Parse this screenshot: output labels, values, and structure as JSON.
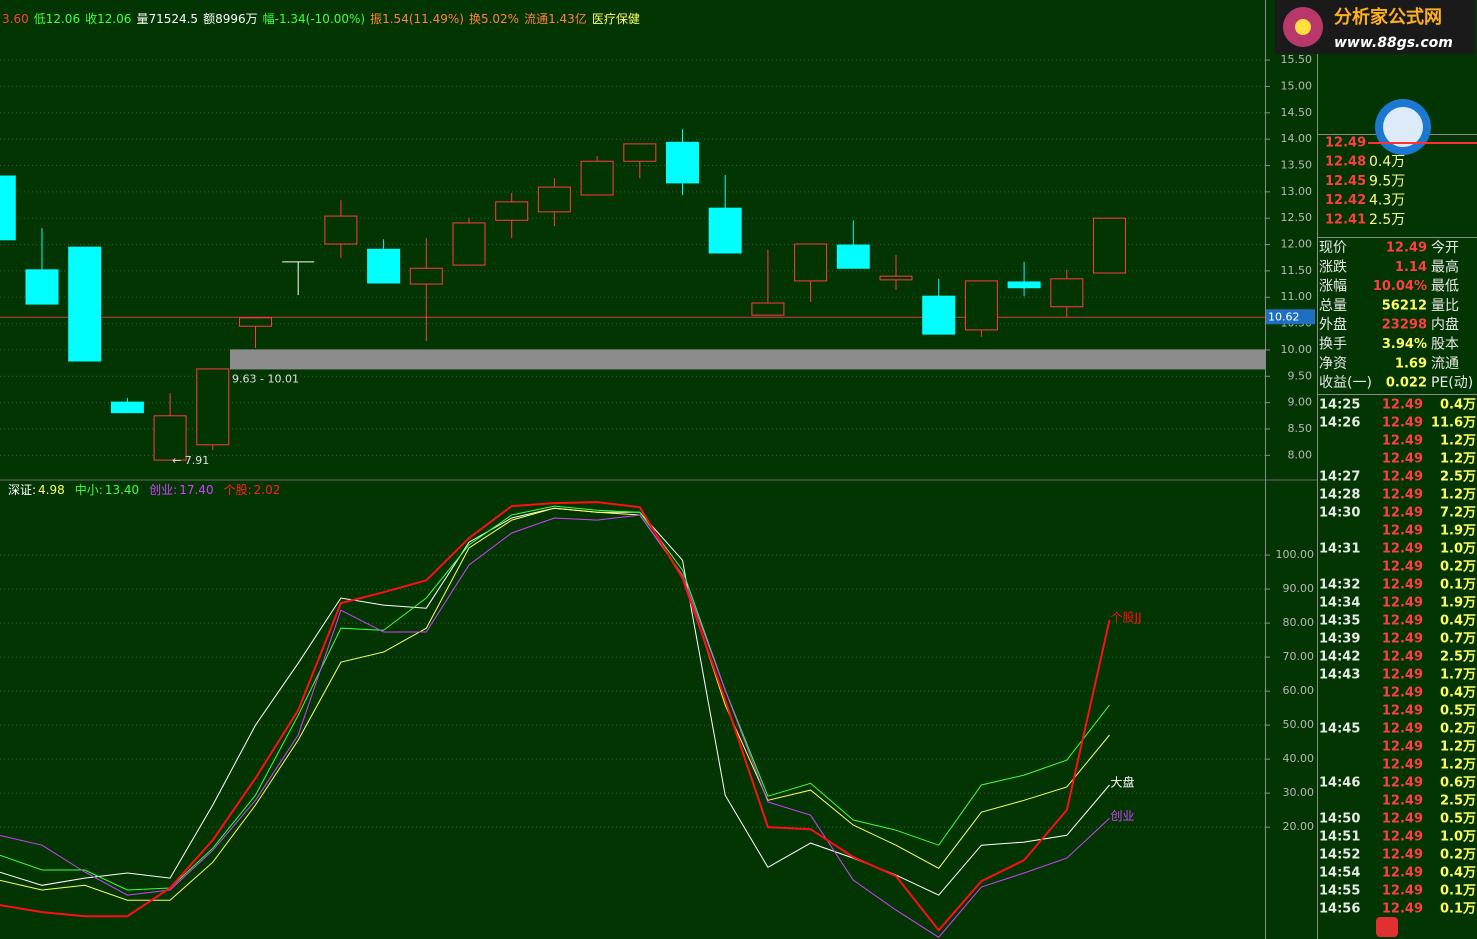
{
  "info_bar": [
    {
      "text": "3.60",
      "color": "#ff4040"
    },
    {
      "text": "低12.06",
      "color": "#40ff40"
    },
    {
      "text": "收12.06",
      "color": "#40ff40"
    },
    {
      "text": "量71524.5",
      "color": "#ffffff"
    },
    {
      "text": "额8996万",
      "color": "#ffffff"
    },
    {
      "text": "幅-1.34(-10.00%)",
      "color": "#40ff40"
    },
    {
      "text": "振1.54(11.49%)",
      "color": "#ff8040"
    },
    {
      "text": "换5.02%",
      "color": "#ff8040"
    },
    {
      "text": "流通1.43亿",
      "color": "#ff8040"
    },
    {
      "text": "医疗保健",
      "color": "#ffff60"
    }
  ],
  "price_panel": {
    "ylim": [
      7.57,
      16.64
    ],
    "yticks": [
      {
        "value": 8,
        "label": "8.00"
      },
      {
        "value": 8.5,
        "label": "8.50"
      },
      {
        "value": 9,
        "label": "9.00"
      },
      {
        "value": 9.5,
        "label": "9.50"
      },
      {
        "value": 10,
        "label": "10.00"
      },
      {
        "value": 10.5,
        "label": "10.50"
      },
      {
        "value": 11,
        "label": "11.00"
      },
      {
        "value": 11.5,
        "label": "11.50"
      },
      {
        "value": 12,
        "label": "12.00"
      },
      {
        "value": 12.5,
        "label": "12.50"
      },
      {
        "value": 13,
        "label": "13.00"
      },
      {
        "value": 13.5,
        "label": "13.50"
      },
      {
        "value": 14,
        "label": "14.00"
      },
      {
        "value": 14.5,
        "label": "14.50"
      },
      {
        "value": 15,
        "label": "15.00"
      },
      {
        "value": 15.5,
        "label": "15.50"
      }
    ],
    "up_color": "#ff3c3c",
    "down_color": "#00ffff",
    "candles": [
      {
        "open": 13.3,
        "close": 12.09,
        "high": 13.6,
        "low": 12.09
      },
      {
        "open": 11.52,
        "close": 10.87,
        "high": 12.31,
        "low": 10.87
      },
      {
        "open": 11.95,
        "close": 9.79,
        "high": 11.95,
        "low": 9.79
      },
      {
        "open": 9.01,
        "close": 8.81,
        "high": 9.09,
        "low": 8.81
      },
      {
        "open": 7.91,
        "close": 8.75,
        "high": 9.18,
        "low": 7.91
      },
      {
        "open": 8.2,
        "close": 9.64,
        "high": 9.64,
        "low": 8.1
      },
      {
        "open": 10.45,
        "close": 10.61,
        "high": 10.61,
        "low": 10.04
      },
      {
        "open": 11.67,
        "close": 11.67,
        "high": 11.67,
        "low": 11.04
      },
      {
        "open": 12.01,
        "close": 12.54,
        "high": 12.84,
        "low": 11.74
      },
      {
        "open": 11.91,
        "close": 11.27,
        "high": 12.1,
        "low": 11.27
      },
      {
        "open": 11.25,
        "close": 11.55,
        "high": 12.12,
        "low": 10.17
      },
      {
        "open": 11.61,
        "close": 12.41,
        "high": 12.5,
        "low": 11.61
      },
      {
        "open": 12.46,
        "close": 12.81,
        "high": 12.98,
        "low": 12.12
      },
      {
        "open": 12.62,
        "close": 13.09,
        "high": 13.26,
        "low": 12.35
      },
      {
        "open": 12.94,
        "close": 13.58,
        "high": 13.68,
        "low": 12.94
      },
      {
        "open": 13.58,
        "close": 13.91,
        "high": 13.91,
        "low": 13.26
      },
      {
        "open": 13.94,
        "close": 13.17,
        "high": 14.19,
        "low": 12.94
      },
      {
        "open": 12.69,
        "close": 11.84,
        "high": 13.32,
        "low": 11.84
      },
      {
        "open": 10.66,
        "close": 10.89,
        "high": 11.9,
        "low": 10.66
      },
      {
        "open": 11.31,
        "close": 12.01,
        "high": 12.01,
        "low": 10.91
      },
      {
        "open": 11.99,
        "close": 11.55,
        "high": 12.46,
        "low": 11.55
      },
      {
        "open": 11.33,
        "close": 11.4,
        "high": 11.8,
        "low": 11.14
      },
      {
        "open": 11.02,
        "close": 10.3,
        "high": 11.35,
        "low": 10.3
      },
      {
        "open": 10.38,
        "close": 11.31,
        "high": 11.31,
        "low": 10.25
      },
      {
        "open": 11.29,
        "close": 11.18,
        "high": 11.67,
        "low": 11.02
      },
      {
        "open": 10.82,
        "close": 11.35,
        "high": 11.52,
        "low": 10.63
      },
      {
        "open": 11.46,
        "close": 12.5,
        "high": 12.5,
        "low": 11.46
      }
    ],
    "last_price": {
      "value": 10.62,
      "label": "10.62"
    },
    "band": {
      "range": [
        9.63,
        10.01
      ],
      "label": "9.63 - 10.01"
    },
    "low_label": "← 7.91"
  },
  "indicator_panel": {
    "ylim": [
      -12.9,
      121.5
    ],
    "yticks": [
      {
        "value": 20,
        "label": "20.00"
      },
      {
        "value": 30,
        "label": "30.00"
      },
      {
        "value": 40,
        "label": "40.00"
      },
      {
        "value": 50,
        "label": "50.00"
      },
      {
        "value": 60,
        "label": "60.00"
      },
      {
        "value": 70,
        "label": "70.00"
      },
      {
        "value": 80,
        "label": "80.00"
      },
      {
        "value": 90,
        "label": "90.00"
      },
      {
        "value": 100,
        "label": "100.00"
      }
    ],
    "legend": [
      {
        "name": "深证:",
        "value": "4.98",
        "color": "#ffffff",
        "value_color": "#ffff60"
      },
      {
        "name": "中小:",
        "value": "13.40",
        "color": "#40ff40",
        "value_color": "#40ff40"
      },
      {
        "name": "创业:",
        "value": "17.40",
        "color": "#d040ff",
        "value_color": "#d040ff"
      },
      {
        "name": "个股:",
        "value": "2.02",
        "color": "#ff2020",
        "value_color": "#ff2020"
      }
    ],
    "series": [
      {
        "color": "#ffffff",
        "values": [
          6.8,
          2.9,
          5.0,
          6.5,
          5.0,
          26.5,
          50.0,
          68.2,
          87.4,
          85.3,
          84.4,
          103.8,
          110.9,
          113.8,
          112.6,
          112.6,
          98.5,
          29.4,
          8.2,
          15.3,
          10.9,
          5.9,
          0.0,
          14.7,
          15.6,
          17.6,
          32.4
        ]
      },
      {
        "color": "#ffff60",
        "values": [
          4.4,
          1.5,
          2.9,
          -1.5,
          -1.5,
          9.7,
          26.5,
          45.6,
          68.5,
          71.5,
          78.5,
          102.1,
          110.3,
          113.8,
          112.6,
          111.8,
          94.1,
          55.9,
          27.9,
          30.9,
          20.6,
          14.7,
          7.9,
          24.4,
          27.9,
          31.8,
          47.1
        ]
      },
      {
        "color": "#40ff40",
        "values": [
          11.8,
          7.4,
          7.4,
          1.5,
          2.1,
          13.8,
          29.4,
          52.9,
          78.5,
          77.9,
          87.4,
          103.0,
          111.8,
          114.4,
          113.2,
          112.6,
          95.6,
          60.3,
          29.1,
          32.9,
          22.1,
          19.1,
          14.7,
          32.4,
          35.3,
          39.7,
          55.9
        ]
      },
      {
        "color": "#d040ff",
        "values": [
          17.6,
          14.7,
          6.8,
          0.0,
          1.5,
          13.2,
          27.9,
          47.1,
          83.8,
          77.4,
          77.4,
          97.1,
          106.5,
          110.9,
          110.3,
          111.8,
          94.1,
          60.3,
          27.4,
          23.5,
          4.4,
          -4.4,
          -12.4,
          2.4,
          6.5,
          10.9,
          22.6
        ]
      },
      {
        "color": "#ff1010",
        "values": [
          -2.9,
          -5.0,
          -6.2,
          -6.2,
          2.1,
          16.2,
          34.4,
          54.4,
          85.9,
          89.1,
          92.6,
          105.0,
          114.4,
          115.3,
          115.6,
          114.1,
          93.2,
          57.4,
          20.0,
          19.4,
          11.2,
          5.6,
          -10.3,
          4.1,
          10.3,
          25.0,
          80.9
        ]
      }
    ],
    "line_labels": [
      {
        "text": "个股JJ",
        "series": 4
      },
      {
        "text": "大盘",
        "series": 0
      },
      {
        "text": "创业",
        "series": 3
      }
    ]
  },
  "logo": {
    "title": "分析家公式网",
    "url": "www.88gs.com"
  },
  "order_book": [
    {
      "price": "12.49",
      "volume": null
    },
    {
      "price": "12.48",
      "volume": "0.4万"
    },
    {
      "price": "12.45",
      "volume": "9.5万"
    },
    {
      "price": "12.42",
      "volume": "4.3万"
    },
    {
      "price": "12.41",
      "volume": "2.5万"
    }
  ],
  "quote": [
    {
      "label": "现价",
      "value": "12.49",
      "next": "今开",
      "color": "#ff4040"
    },
    {
      "label": "涨跌",
      "value": "1.14",
      "next": "最高",
      "color": "#ff4040"
    },
    {
      "label": "涨幅",
      "value": "10.04%",
      "next": "最低",
      "color": "#ff4040"
    },
    {
      "label": "总量",
      "value": "56212",
      "next": "量比",
      "color": "#ffff60"
    },
    {
      "label": "外盘",
      "value": "23298",
      "next": "内盘",
      "color": "#ff4040"
    },
    {
      "label": "换手",
      "value": "3.94%",
      "next": "股本",
      "color": "#ffff60"
    },
    {
      "label": "净资",
      "value": "1.69",
      "next": "流通",
      "color": "#ffff60"
    },
    {
      "label": "收益(一)",
      "value": "0.022",
      "next": "PE(动)",
      "color": "#ffff60"
    }
  ],
  "ticks": [
    {
      "time": "14:25",
      "price": "12.49",
      "volume": "0.4万"
    },
    {
      "time": "14:26",
      "price": "12.49",
      "volume": "11.6万"
    },
    {
      "time": null,
      "price": "12.49",
      "volume": "1.2万"
    },
    {
      "time": null,
      "price": "12.49",
      "volume": "1.2万"
    },
    {
      "time": "14:27",
      "price": "12.49",
      "volume": "2.5万"
    },
    {
      "time": "14:28",
      "price": "12.49",
      "volume": "1.2万"
    },
    {
      "time": "14:30",
      "price": "12.49",
      "volume": "7.2万"
    },
    {
      "time": null,
      "price": "12.49",
      "volume": "1.9万"
    },
    {
      "time": "14:31",
      "price": "12.49",
      "volume": "1.0万"
    },
    {
      "time": null,
      "price": "12.49",
      "volume": "0.2万"
    },
    {
      "time": "14:32",
      "price": "12.49",
      "volume": "0.1万"
    },
    {
      "time": "14:34",
      "price": "12.49",
      "volume": "1.9万"
    },
    {
      "time": "14:35",
      "price": "12.49",
      "volume": "0.4万"
    },
    {
      "time": "14:39",
      "price": "12.49",
      "volume": "0.7万"
    },
    {
      "time": "14:42",
      "price": "12.49",
      "volume": "2.5万"
    },
    {
      "time": "14:43",
      "price": "12.49",
      "volume": "1.7万"
    },
    {
      "time": null,
      "price": "12.49",
      "volume": "0.4万"
    },
    {
      "time": null,
      "price": "12.49",
      "volume": "0.5万"
    },
    {
      "time": "14:45",
      "price": "12.49",
      "volume": "0.2万"
    },
    {
      "time": null,
      "price": "12.49",
      "volume": "1.2万"
    },
    {
      "time": null,
      "price": "12.49",
      "volume": "1.2万"
    },
    {
      "time": "14:46",
      "price": "12.49",
      "volume": "0.6万"
    },
    {
      "time": null,
      "price": "12.49",
      "volume": "2.5万"
    },
    {
      "time": "14:50",
      "price": "12.49",
      "volume": "0.5万"
    },
    {
      "time": "14:51",
      "price": "12.49",
      "volume": "1.0万"
    },
    {
      "time": "14:52",
      "price": "12.49",
      "volume": "0.2万"
    },
    {
      "time": "14:54",
      "price": "12.49",
      "volume": "0.4万"
    },
    {
      "time": "14:55",
      "price": "12.49",
      "volume": "0.1万"
    },
    {
      "time": "14:56",
      "price": "12.49",
      "volume": "0.1万"
    }
  ]
}
